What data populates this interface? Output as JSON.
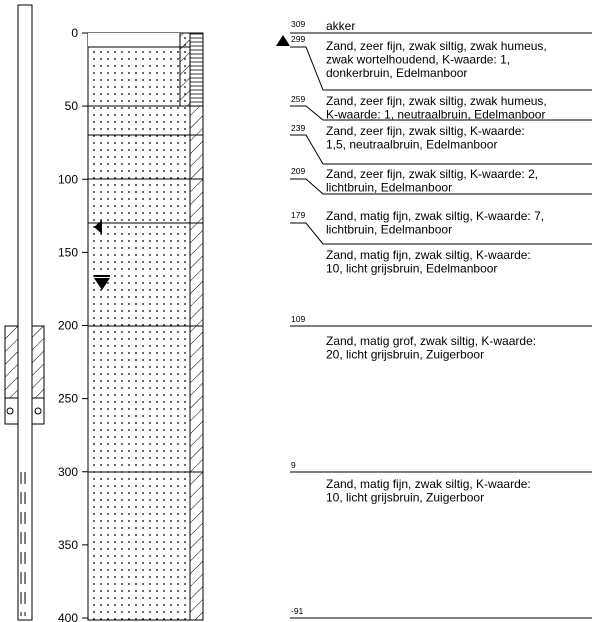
{
  "depth_axis": {
    "ticks": [
      "0",
      "50",
      "100",
      "150",
      "200",
      "250",
      "300",
      "350",
      "400"
    ]
  },
  "layers": [
    {
      "elevation": "309",
      "description": [
        "akker"
      ]
    },
    {
      "elevation": "299",
      "description": [
        "Zand, zeer fijn, zwak siltig, zwak humeus,",
        "zwak wortelhoudend, K-waarde: 1,",
        "donkerbruin, Edelmanboor"
      ]
    },
    {
      "elevation": "259",
      "description": [
        "Zand, zeer fijn, zwak siltig, zwak humeus,",
        "K-waarde: 1, neutraalbruin, Edelmanboor"
      ]
    },
    {
      "elevation": "239",
      "description": [
        "Zand, zeer fijn, zwak siltig, K-waarde:",
        "1,5, neutraalbruin, Edelmanboor"
      ]
    },
    {
      "elevation": "209",
      "description": [
        "Zand, zeer fijn, zwak siltig, K-waarde: 2,",
        "lichtbruin, Edelmanboor"
      ]
    },
    {
      "elevation": "179",
      "description": [
        "Zand, matig fijn, zwak siltig, K-waarde: 7,",
        "lichtbruin, Edelmanboor"
      ]
    },
    {
      "elevation": "",
      "description": [
        "Zand, matig fijn, zwak siltig, K-waarde:",
        "10, licht grijsbruin, Edelmanboor"
      ]
    },
    {
      "elevation": "109",
      "description": [
        "Zand, matig grof, zwak siltig, K-waarde:",
        "20, licht grijsbruin, Zuigerboor"
      ]
    },
    {
      "elevation": "9",
      "description": [
        "Zand, matig fijn, zwak siltig, K-waarde:",
        "10, licht grijsbruin, Zuigerboor"
      ]
    },
    {
      "elevation": "-91",
      "description": []
    }
  ]
}
